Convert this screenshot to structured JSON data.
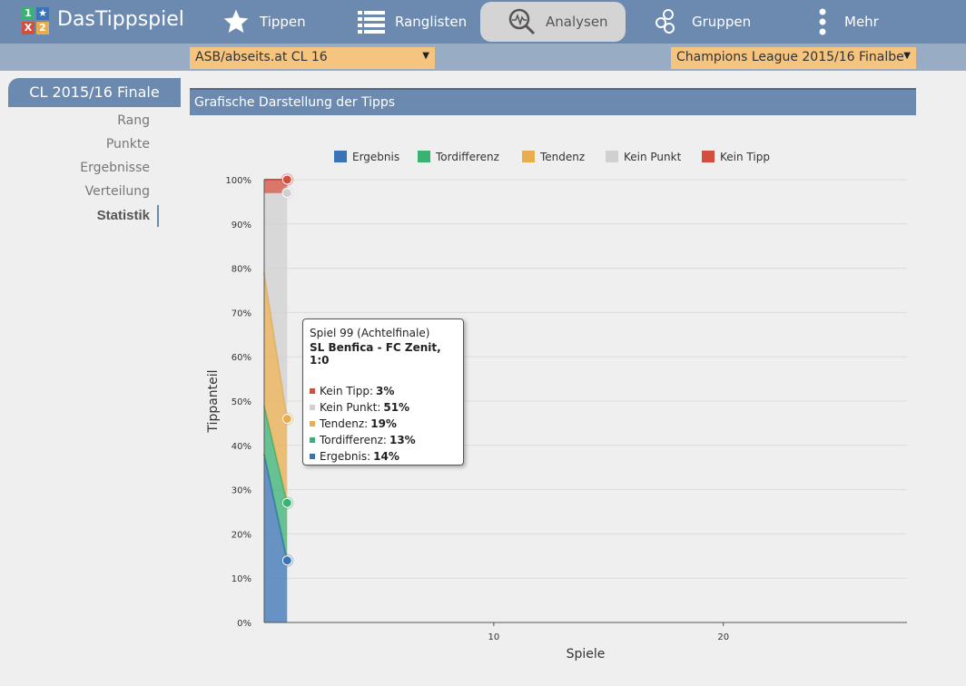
{
  "app": {
    "brand": "DasTippspiel",
    "logo_chars": [
      "1",
      "★",
      "X",
      "2"
    ]
  },
  "nav": [
    {
      "label": "Tippen",
      "icon": "star-icon"
    },
    {
      "label": "Ranglisten",
      "icon": "list-icon"
    },
    {
      "label": "Analysen",
      "icon": "analysis-icon",
      "active": true
    },
    {
      "label": "Gruppen",
      "icon": "groups-icon"
    },
    {
      "label": "Mehr",
      "icon": "more-icon"
    }
  ],
  "selects": {
    "group": "ASB/abseits.at CL 16",
    "competition": "Champions League 2015/16 Finalbe"
  },
  "sidebar": {
    "title": "CL 2015/16 Finale",
    "items": [
      {
        "label": "Rang"
      },
      {
        "label": "Punkte"
      },
      {
        "label": "Ergebnisse"
      },
      {
        "label": "Verteilung"
      },
      {
        "label": "Statistik",
        "active": true
      }
    ]
  },
  "panel": {
    "title": "Grafische Darstellung der Tipps"
  },
  "colors": {
    "ergebnis": "#3a74b6",
    "tordifferenz": "#3bb273",
    "tendenz": "#e8ad4f",
    "kein_punkt": "#d0d0d0",
    "kein_tipp": "#d24f3f",
    "nav": "#6c8ab0"
  },
  "chart_data": {
    "type": "area",
    "stacked": true,
    "legend_position": "top",
    "xlabel": "Spiele",
    "ylabel": "Tippanteil",
    "xlim": [
      0,
      28
    ],
    "ylim": [
      0,
      100
    ],
    "x_ticks": [
      10,
      20
    ],
    "y_ticks": [
      "0%",
      "10%",
      "20%",
      "30%",
      "40%",
      "50%",
      "60%",
      "70%",
      "80%",
      "90%",
      "100%"
    ],
    "x": [
      0,
      1
    ],
    "series": [
      {
        "name": "Ergebnis",
        "key": "ergebnis",
        "values": [
          38,
          14
        ]
      },
      {
        "name": "Tordifferenz",
        "key": "tordifferenz",
        "values": [
          11,
          13
        ]
      },
      {
        "name": "Tendenz",
        "key": "tendenz",
        "values": [
          30,
          19
        ]
      },
      {
        "name": "Kein Punkt",
        "key": "kein_punkt",
        "values": [
          18,
          51
        ]
      },
      {
        "name": "Kein Tipp",
        "key": "kein_tipp",
        "values": [
          3,
          3
        ]
      }
    ]
  },
  "tooltip": {
    "line1": "Spiel 99 (Achtelfinale)",
    "line2": "SL Benfica - FC Zenit, 1:0",
    "rows": [
      {
        "label": "Kein Tipp:",
        "value": "3%",
        "key": "kein_tipp"
      },
      {
        "label": "Kein Punkt:",
        "value": "51%",
        "key": "kein_punkt"
      },
      {
        "label": "Tendenz:",
        "value": "19%",
        "key": "tendenz"
      },
      {
        "label": "Tordifferenz:",
        "value": "13%",
        "key": "tordifferenz"
      },
      {
        "label": "Ergebnis:",
        "value": "14%",
        "key": "ergebnis"
      }
    ]
  }
}
